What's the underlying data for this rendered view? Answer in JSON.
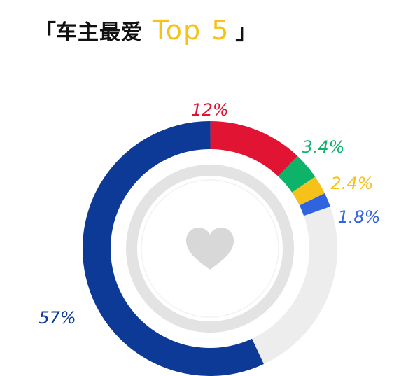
{
  "title": {
    "open_bracket": "「",
    "main": "车主最爱",
    "accent": "Top 5",
    "close_bracket": "」"
  },
  "colors": {
    "accent": "#f6c21a",
    "track": "#ededed",
    "inner_ring": "#e3e3e3",
    "heart": "#d8d8d8"
  },
  "chart_data": {
    "type": "pie",
    "title": "车主最爱 Top 5",
    "unit": "%",
    "slices": [
      {
        "label": "57%",
        "value": 57,
        "color": "#0d3a96"
      },
      {
        "label": "12%",
        "value": 12,
        "color": "#e11533"
      },
      {
        "label": "3.4%",
        "value": 3.4,
        "color": "#0eb36a"
      },
      {
        "label": "2.4%",
        "value": 2.4,
        "color": "#f6c21a"
      },
      {
        "label": "1.8%",
        "value": 1.8,
        "color": "#2f63e0"
      }
    ],
    "center_icon": "heart-icon"
  }
}
